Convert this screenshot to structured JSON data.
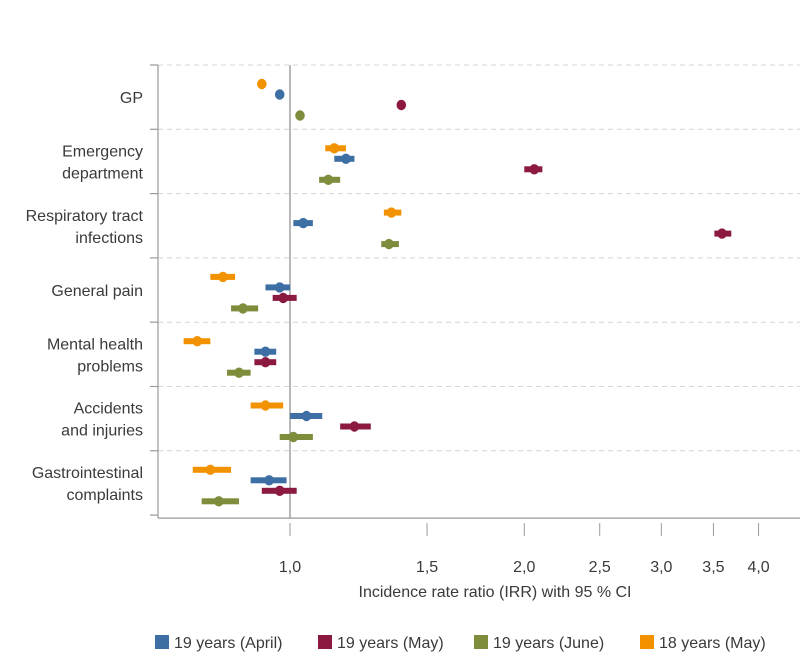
{
  "chart_data": {
    "type": "forest",
    "xlabel": "Incidence rate ratio (IRR) with 95 % CI",
    "x_scale": "log",
    "xlim": [
      0.68,
      4.5
    ],
    "reference_line": 1.0,
    "x_ticks": [
      1.0,
      1.5,
      2.0,
      2.5,
      3.0,
      3.5,
      4.0
    ],
    "x_tick_labels": [
      "1,0",
      "1,5",
      "2,0",
      "2,5",
      "3,0",
      "3,5",
      "4,0"
    ],
    "grid": "horizontal dashed between categories",
    "legend_position": "bottom",
    "categories": [
      [
        "GP"
      ],
      [
        "Emergency",
        "department"
      ],
      [
        "Respiratory tract",
        "infections"
      ],
      [
        "General pain"
      ],
      [
        "Mental health",
        "problems"
      ],
      [
        "Accidents",
        "and injuries"
      ],
      [
        "Gastrointestinal",
        "complaints"
      ]
    ],
    "series": [
      {
        "name": "18 years (May)",
        "color": "#f39200",
        "legend_order": 3,
        "values": [
          0.92,
          1.14,
          1.35,
          0.82,
          0.76,
          0.93,
          0.79
        ],
        "ci_low": [
          0.92,
          1.11,
          1.32,
          0.79,
          0.73,
          0.89,
          0.75
        ],
        "ci_high": [
          0.92,
          1.18,
          1.39,
          0.85,
          0.79,
          0.98,
          0.84
        ]
      },
      {
        "name": "19 years (April)",
        "color": "#3d6fa5",
        "legend_order": 0,
        "values": [
          0.97,
          1.18,
          1.04,
          0.97,
          0.93,
          1.05,
          0.94
        ],
        "ci_low": [
          0.97,
          1.14,
          1.01,
          0.93,
          0.9,
          1.0,
          0.89
        ],
        "ci_high": [
          0.97,
          1.21,
          1.07,
          1.0,
          0.96,
          1.1,
          0.99
        ]
      },
      {
        "name": "19 years (May)",
        "color": "#8c1a40",
        "legend_order": 1,
        "values": [
          1.39,
          2.06,
          3.59,
          0.98,
          0.93,
          1.21,
          0.97
        ],
        "ci_low": [
          1.39,
          2.0,
          3.51,
          0.95,
          0.9,
          1.16,
          0.92
        ],
        "ci_high": [
          1.39,
          2.11,
          3.69,
          1.02,
          0.96,
          1.27,
          1.02
        ]
      },
      {
        "name": "19 years (June)",
        "color": "#7e8d3c",
        "legend_order": 2,
        "values": [
          1.03,
          1.12,
          1.34,
          0.87,
          0.86,
          1.01,
          0.81
        ],
        "ci_low": [
          1.03,
          1.09,
          1.31,
          0.84,
          0.83,
          0.97,
          0.77
        ],
        "ci_high": [
          1.03,
          1.16,
          1.38,
          0.91,
          0.89,
          1.07,
          0.86
        ]
      }
    ]
  }
}
